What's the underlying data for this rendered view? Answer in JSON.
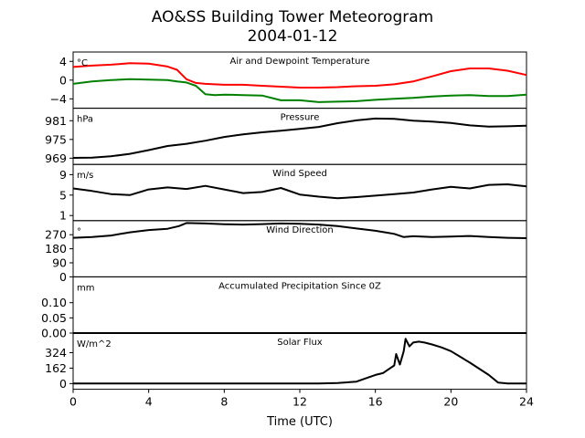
{
  "title": "AO&SS Building Tower Meteorogram",
  "subtitle": "2004-01-12",
  "xlabel": "Time (UTC)",
  "chart_data": [
    {
      "type": "line",
      "title": "Air and Dewpoint Temperature",
      "unit": "°C",
      "ylim": [
        -6.0,
        6.0
      ],
      "yticks": [
        "4",
        "0",
        "−4"
      ],
      "ytick_values": [
        4,
        0,
        -4
      ],
      "x": [
        0,
        1,
        2,
        3,
        4,
        5,
        5.5,
        6,
        6.5,
        7,
        7.5,
        8,
        9,
        10,
        11,
        12,
        13,
        14,
        15,
        16,
        17,
        18,
        19,
        20,
        21,
        22,
        23,
        24
      ],
      "series": [
        {
          "color": "#ff0000",
          "values": [
            2.8,
            3.1,
            3.3,
            3.6,
            3.5,
            2.9,
            2.2,
            0.2,
            -0.6,
            -0.8,
            -0.9,
            -1.0,
            -1.0,
            -1.2,
            -1.4,
            -1.6,
            -1.6,
            -1.5,
            -1.3,
            -1.2,
            -0.9,
            -0.3,
            0.8,
            1.9,
            2.5,
            2.5,
            2.0,
            1.1
          ]
        },
        {
          "color": "#008000",
          "values": [
            -0.8,
            -0.3,
            0.0,
            0.2,
            0.1,
            0.0,
            -0.3,
            -0.5,
            -1.2,
            -3.0,
            -3.2,
            -3.1,
            -3.2,
            -3.3,
            -4.3,
            -4.3,
            -4.7,
            -4.6,
            -4.5,
            -4.2,
            -4.0,
            -3.8,
            -3.5,
            -3.3,
            -3.2,
            -3.4,
            -3.4,
            -3.1
          ]
        }
      ]
    },
    {
      "type": "line",
      "title": "Pressure",
      "unit": "hPa",
      "ylim": [
        967.0,
        985.0
      ],
      "yticks": [
        "981",
        "975",
        "969"
      ],
      "ytick_values": [
        981,
        975,
        969
      ],
      "x": [
        0,
        1,
        2,
        3,
        4,
        5,
        6,
        7,
        8,
        9,
        10,
        11,
        12,
        13,
        14,
        15,
        16,
        17,
        18,
        19,
        20,
        21,
        22,
        23,
        24
      ],
      "series": [
        {
          "color": "#000000",
          "values": [
            969.1,
            969.2,
            969.6,
            970.4,
            971.6,
            972.9,
            973.6,
            974.6,
            975.8,
            976.6,
            977.3,
            977.8,
            978.4,
            979.0,
            980.2,
            981.1,
            981.7,
            981.6,
            981.0,
            980.7,
            980.3,
            979.5,
            979.1,
            979.2,
            979.4
          ]
        }
      ]
    },
    {
      "type": "line",
      "title": "Wind Speed",
      "unit": "m/s",
      "ylim": [
        0.0,
        11.0
      ],
      "yticks": [
        "9",
        "5",
        "1"
      ],
      "ytick_values": [
        9,
        5,
        1
      ],
      "x": [
        0,
        1,
        2,
        3,
        4,
        5,
        6,
        7,
        8,
        9,
        10,
        11,
        12,
        13,
        14,
        15,
        16,
        17,
        18,
        19,
        20,
        21,
        22,
        23,
        24
      ],
      "series": [
        {
          "color": "#000000",
          "values": [
            6.3,
            5.8,
            5.2,
            5.0,
            6.1,
            6.5,
            6.2,
            6.8,
            6.1,
            5.4,
            5.6,
            6.4,
            5.1,
            4.7,
            4.4,
            4.6,
            4.9,
            5.2,
            5.5,
            6.1,
            6.6,
            6.3,
            7.0,
            7.1,
            6.7
          ]
        }
      ]
    },
    {
      "type": "line",
      "title": "Wind Direction",
      "unit": "°",
      "ylim": [
        0,
        360
      ],
      "yticks": [
        "270",
        "180",
        "90",
        "0"
      ],
      "ytick_values": [
        270,
        180,
        90,
        0
      ],
      "x": [
        0,
        1,
        2,
        3,
        4,
        5,
        5.6,
        6,
        7,
        8,
        9,
        10,
        11,
        12,
        13,
        14,
        15,
        16,
        17,
        17.5,
        18,
        19,
        20,
        21,
        22,
        23,
        24
      ],
      "series": [
        {
          "color": "#000000",
          "values": [
            250,
            255,
            265,
            285,
            300,
            308,
            325,
            345,
            342,
            337,
            335,
            338,
            342,
            340,
            335,
            325,
            310,
            295,
            275,
            255,
            260,
            255,
            258,
            262,
            255,
            250,
            248
          ]
        }
      ]
    },
    {
      "type": "line",
      "title": "Accumulated Precipitation Since 0Z",
      "unit": "mm",
      "ylim": [
        0.0,
        0.185
      ],
      "yticks": [
        "0.10",
        "0.05",
        "0.00"
      ],
      "ytick_values": [
        0.1,
        0.05,
        0.0
      ],
      "x": [
        0,
        24
      ],
      "series": [
        {
          "color": "#000000",
          "values": [
            0.0,
            0.0
          ]
        }
      ]
    },
    {
      "type": "line",
      "title": "Solar Flux",
      "unit": "W/m^2",
      "ylim": [
        -60,
        530
      ],
      "yticks": [
        "324",
        "162",
        "0"
      ],
      "ytick_values": [
        324,
        162,
        0
      ],
      "x": [
        0,
        13,
        14,
        15,
        15.5,
        16,
        16.4,
        16.7,
        17,
        17.1,
        17.3,
        17.5,
        17.6,
        17.8,
        18,
        18.3,
        18.6,
        19,
        19.5,
        20,
        21,
        22,
        22.5,
        23,
        24
      ],
      "series": [
        {
          "color": "#000000",
          "values": [
            0,
            0,
            5,
            20,
            55,
            90,
            110,
            150,
            190,
            310,
            200,
            340,
            470,
            390,
            430,
            440,
            430,
            410,
            380,
            340,
            220,
            90,
            10,
            0,
            0
          ]
        }
      ]
    }
  ],
  "x_axis": {
    "xlim": [
      0,
      24
    ],
    "ticks": [
      0,
      4,
      8,
      12,
      16,
      20,
      24
    ]
  }
}
